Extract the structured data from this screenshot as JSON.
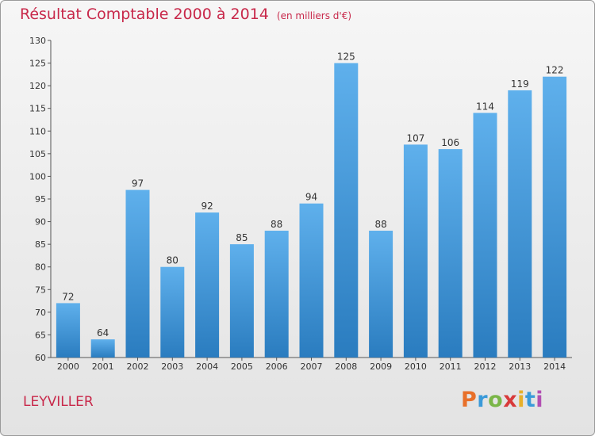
{
  "header": {
    "title": "Résultat Comptable 2000 à 2014",
    "subtitle": "(en milliers d'€)"
  },
  "footer": {
    "commune": "LEYVILLER",
    "logo": "Proxiti"
  },
  "colors": {
    "title": "#c8284a",
    "bar_top": "#5fb0ec",
    "bar_bottom": "#2a7cbf"
  },
  "chart_data": {
    "type": "bar",
    "title": "Résultat Comptable 2000 à 2014",
    "subtitle": "(en milliers d'€)",
    "xlabel": "",
    "ylabel": "",
    "categories": [
      "2000",
      "2001",
      "2002",
      "2003",
      "2004",
      "2005",
      "2006",
      "2007",
      "2008",
      "2009",
      "2010",
      "2011",
      "2012",
      "2013",
      "2014"
    ],
    "values": [
      72,
      64,
      97,
      80,
      92,
      85,
      88,
      94,
      125,
      88,
      107,
      106,
      114,
      119,
      122
    ],
    "ylim": [
      60,
      130
    ],
    "yticks": [
      60,
      65,
      70,
      75,
      80,
      85,
      90,
      95,
      100,
      105,
      110,
      115,
      120,
      125,
      130
    ],
    "grid": false,
    "data_labels": true
  }
}
